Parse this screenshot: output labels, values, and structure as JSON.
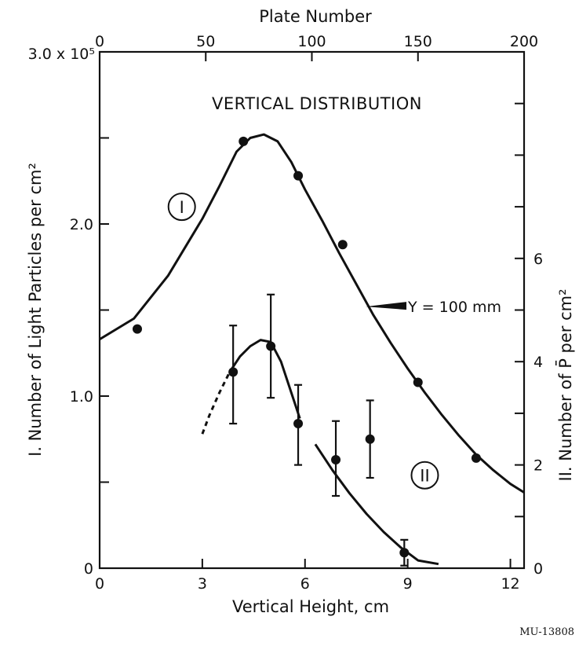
{
  "figure_code": "MU-13808",
  "chart_data": {
    "type": "scatter",
    "title": "VERTICAL DISTRIBUTION",
    "xlabel": "Vertical Height, cm",
    "x2label": "Plate Number",
    "ylabel": "I. Number of Light Particles per cm²",
    "y2label": "II. Number of P̄ per cm²",
    "xlim": [
      0,
      12.4
    ],
    "ylim": [
      0,
      300000
    ],
    "y2lim": [
      0,
      10
    ],
    "x2lim": [
      0,
      200
    ],
    "x_ticks": [
      "0",
      "3",
      "6",
      "9",
      "12"
    ],
    "x2_ticks": [
      "0",
      "50",
      "100",
      "150",
      "200"
    ],
    "y_ticks": [
      "0",
      "1.0",
      "2.0"
    ],
    "y_top_label": "3.0 x 10⁵",
    "y2_ticks": [
      "0",
      "2",
      "4",
      "6"
    ],
    "grid": false,
    "series": [
      {
        "name": "I",
        "axis": "left",
        "x": [
          1.1,
          4.2,
          5.8,
          7.1,
          9.3,
          11.0
        ],
        "y": [
          139000,
          248000,
          228000,
          188000,
          108000,
          64000
        ],
        "curve_x": [
          0,
          1,
          2,
          3,
          3.5,
          4,
          4.4,
          4.8,
          5.2,
          5.6,
          6,
          6.5,
          7,
          7.5,
          8,
          8.5,
          9,
          9.5,
          10,
          10.5,
          11,
          11.5,
          12,
          12.4
        ],
        "curve_y": [
          133000,
          145000,
          170000,
          203000,
          222000,
          242000,
          250000,
          252000,
          248000,
          236000,
          220000,
          202000,
          183000,
          165000,
          147000,
          131000,
          116000,
          102000,
          89000,
          77000,
          66000,
          57000,
          49000,
          44000
        ]
      },
      {
        "name": "II",
        "axis": "right",
        "x": [
          3.9,
          5.0,
          5.8,
          6.9,
          7.9,
          8.9
        ],
        "y": [
          3.8,
          4.3,
          2.8,
          2.1,
          2.5,
          0.3
        ],
        "err_low": [
          2.8,
          3.3,
          2.0,
          1.4,
          1.75,
          0.05
        ],
        "err_high": [
          4.7,
          5.3,
          3.55,
          2.85,
          3.25,
          0.55
        ],
        "curve_x": [
          3.0,
          3.2,
          3.5,
          3.8,
          4.1,
          4.4,
          4.7,
          5.0,
          5.3,
          5.6,
          5.85,
          6.3,
          6.8,
          7.3,
          7.8,
          8.3,
          8.8,
          9.3,
          9.9
        ],
        "curve_y": [
          2.6,
          2.95,
          3.4,
          3.8,
          4.1,
          4.3,
          4.42,
          4.38,
          4.0,
          3.4,
          2.9,
          2.4,
          1.9,
          1.45,
          1.05,
          0.7,
          0.4,
          0.15,
          0.08
        ]
      }
    ],
    "annotations": [
      {
        "text": "Y = 100 mm",
        "x": 8.0,
        "y": 152000,
        "axis": "left"
      },
      {
        "text": "I",
        "x": 2.4,
        "y": 210000,
        "axis": "left",
        "circled": true
      },
      {
        "text": "II",
        "x": 9.5,
        "y": 1.8,
        "axis": "right",
        "circled": true
      }
    ]
  }
}
